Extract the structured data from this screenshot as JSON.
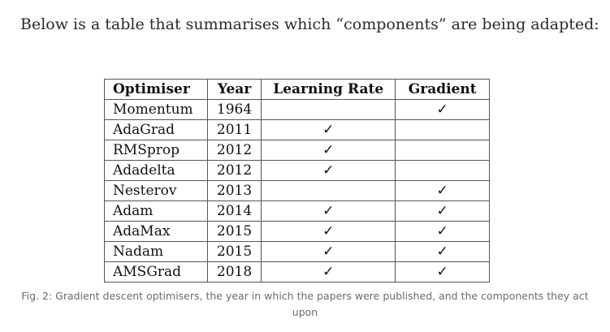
{
  "intro_text": "Below is a table that summarises which “components” are being adapted:",
  "table": {
    "headers": [
      "Optimiser",
      "Year",
      "Learning Rate",
      "Gradient"
    ],
    "rows": [
      {
        "optimiser": "Momentum",
        "year": "1964",
        "learning_rate": "",
        "gradient": "✓"
      },
      {
        "optimiser": "AdaGrad",
        "year": "2011",
        "learning_rate": "✓",
        "gradient": ""
      },
      {
        "optimiser": "RMSprop",
        "year": "2012",
        "learning_rate": "✓",
        "gradient": ""
      },
      {
        "optimiser": "Adadelta",
        "year": "2012",
        "learning_rate": "✓",
        "gradient": ""
      },
      {
        "optimiser": "Nesterov",
        "year": "2013",
        "learning_rate": "",
        "gradient": "✓"
      },
      {
        "optimiser": "Adam",
        "year": "2014",
        "learning_rate": "✓",
        "gradient": "✓"
      },
      {
        "optimiser": "AdaMax",
        "year": "2015",
        "learning_rate": "✓",
        "gradient": "✓"
      },
      {
        "optimiser": "Nadam",
        "year": "2015",
        "learning_rate": "✓",
        "gradient": "✓"
      },
      {
        "optimiser": "AMSGrad",
        "year": "2018",
        "learning_rate": "✓",
        "gradient": "✓"
      }
    ]
  },
  "caption": "Fig. 2: Gradient descent optimisers, the year in which the papers were published, and the components they act upon"
}
